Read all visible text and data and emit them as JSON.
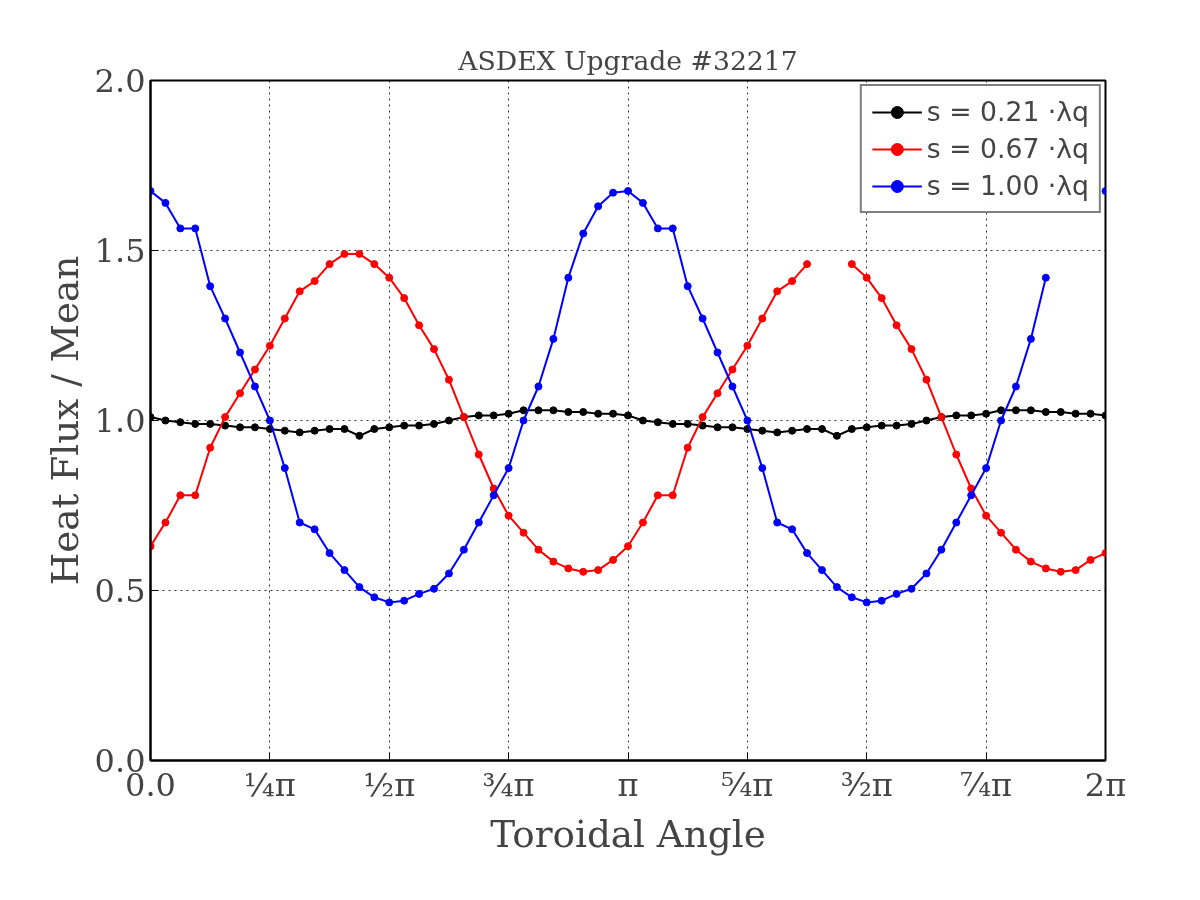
{
  "chart_data": {
    "type": "line",
    "title": "ASDEX Upgrade #32217",
    "xlabel": "Toroidal Angle",
    "ylabel": "Heat Flux / Mean",
    "x": [
      0,
      0.0982,
      0.1963,
      0.2945,
      0.3927,
      0.4909,
      0.589,
      0.6872,
      0.7854,
      0.8836,
      0.9817,
      1.0799,
      1.1781,
      1.2763,
      1.3744,
      1.4726,
      1.5708,
      1.669,
      1.7671,
      1.8653,
      1.9635,
      2.0617,
      2.1598,
      2.258,
      2.3562,
      2.4544,
      2.5525,
      2.6507,
      2.7489,
      2.8471,
      2.9452,
      3.0434,
      3.1416,
      3.2398,
      3.3379,
      3.4361,
      3.5343,
      3.6325,
      3.7306,
      3.8288,
      3.927,
      4.0252,
      4.1233,
      4.2215,
      4.3197,
      4.4179,
      4.516,
      4.6142,
      4.7124,
      4.8106,
      4.9087,
      5.0069,
      5.1051,
      5.2033,
      5.3014,
      5.3996,
      5.4978,
      5.596,
      5.6941,
      5.7923,
      5.8905,
      5.9887,
      6.0868,
      6.185,
      6.2832
    ],
    "series": [
      {
        "name": "s = 0.21 ·λq",
        "color": "#000000",
        "values": [
          1.01,
          1.0,
          0.995,
          0.99,
          0.99,
          0.985,
          0.98,
          0.98,
          0.975,
          0.97,
          0.965,
          0.97,
          0.975,
          0.975,
          0.955,
          0.975,
          0.98,
          0.985,
          0.985,
          0.99,
          1.0,
          1.01,
          1.015,
          1.015,
          1.02,
          1.03,
          1.03,
          1.03,
          1.025,
          1.025,
          1.02,
          1.02,
          1.015,
          1.0,
          0.995,
          0.99,
          0.99,
          0.985,
          0.98,
          0.98,
          0.975,
          0.97,
          0.965,
          0.97,
          0.975,
          0.975,
          0.955,
          0.975,
          0.98,
          0.985,
          0.985,
          0.99,
          1.0,
          1.01,
          1.015,
          1.015,
          1.02,
          1.03,
          1.03,
          1.03,
          1.025,
          1.025,
          1.02,
          1.02,
          1.015
        ]
      },
      {
        "name": "s = 0.67 ·λq",
        "color": "#ff0000",
        "values": [
          0.63,
          0.7,
          0.78,
          0.78,
          0.92,
          1.01,
          1.08,
          1.15,
          1.22,
          1.3,
          1.38,
          1.41,
          1.46,
          1.49,
          1.49,
          1.46,
          1.42,
          1.36,
          1.28,
          1.21,
          1.12,
          1.01,
          0.9,
          0.8,
          0.72,
          0.67,
          0.62,
          0.585,
          0.565,
          0.555,
          0.56,
          0.59,
          0.63,
          0.7,
          0.78,
          0.78,
          0.92,
          1.01,
          1.08,
          1.15,
          1.22,
          1.3,
          1.38,
          1.41,
          1.46,
          null,
          null,
          1.46,
          1.42,
          1.36,
          1.28,
          1.21,
          1.12,
          1.01,
          0.9,
          0.8,
          0.72,
          0.67,
          0.62,
          0.585,
          0.565,
          0.555,
          0.56,
          0.59,
          0.61
        ]
      },
      {
        "name": "s = 1.00 ·λq",
        "color": "#0000ff",
        "values": [
          1.675,
          1.64,
          1.565,
          1.565,
          1.395,
          1.3,
          1.2,
          1.1,
          1.0,
          0.86,
          0.7,
          0.68,
          0.61,
          0.56,
          0.51,
          0.48,
          0.465,
          0.47,
          0.49,
          0.505,
          0.55,
          0.62,
          0.7,
          0.78,
          0.86,
          1.0,
          1.1,
          1.24,
          1.42,
          1.55,
          1.63,
          1.67,
          1.675,
          1.64,
          1.565,
          1.565,
          1.395,
          1.3,
          1.2,
          1.1,
          1.0,
          0.86,
          0.7,
          0.68,
          0.61,
          0.56,
          0.51,
          0.48,
          0.465,
          0.47,
          0.49,
          0.505,
          0.55,
          0.62,
          0.7,
          0.78,
          0.86,
          1.0,
          1.1,
          1.24,
          1.42,
          null,
          null,
          null,
          1.675
        ]
      }
    ],
    "xlim": [
      0,
      6.2832
    ],
    "xticks": [
      {
        "value": 0,
        "label": "0.0"
      },
      {
        "value": 0.7854,
        "label": "¼π"
      },
      {
        "value": 1.5708,
        "label": "½π"
      },
      {
        "value": 2.3562,
        "label": "¾π"
      },
      {
        "value": 3.1416,
        "label": "π"
      },
      {
        "value": 3.927,
        "label": "⁵⁄₄π"
      },
      {
        "value": 4.7124,
        "label": "³⁄₂π"
      },
      {
        "value": 5.4978,
        "label": "⁷⁄₄π"
      },
      {
        "value": 6.2832,
        "label": "2π"
      }
    ],
    "ylim": [
      0,
      2
    ],
    "yticks": [
      {
        "value": 0,
        "label": "0.0"
      },
      {
        "value": 0.5,
        "label": "0.5"
      },
      {
        "value": 1,
        "label": "1.0"
      },
      {
        "value": 1.5,
        "label": "1.5"
      },
      {
        "value": 2,
        "label": "2.0"
      }
    ],
    "grid": true,
    "legend": "top right",
    "marker": "circle",
    "line_style": "solid"
  }
}
